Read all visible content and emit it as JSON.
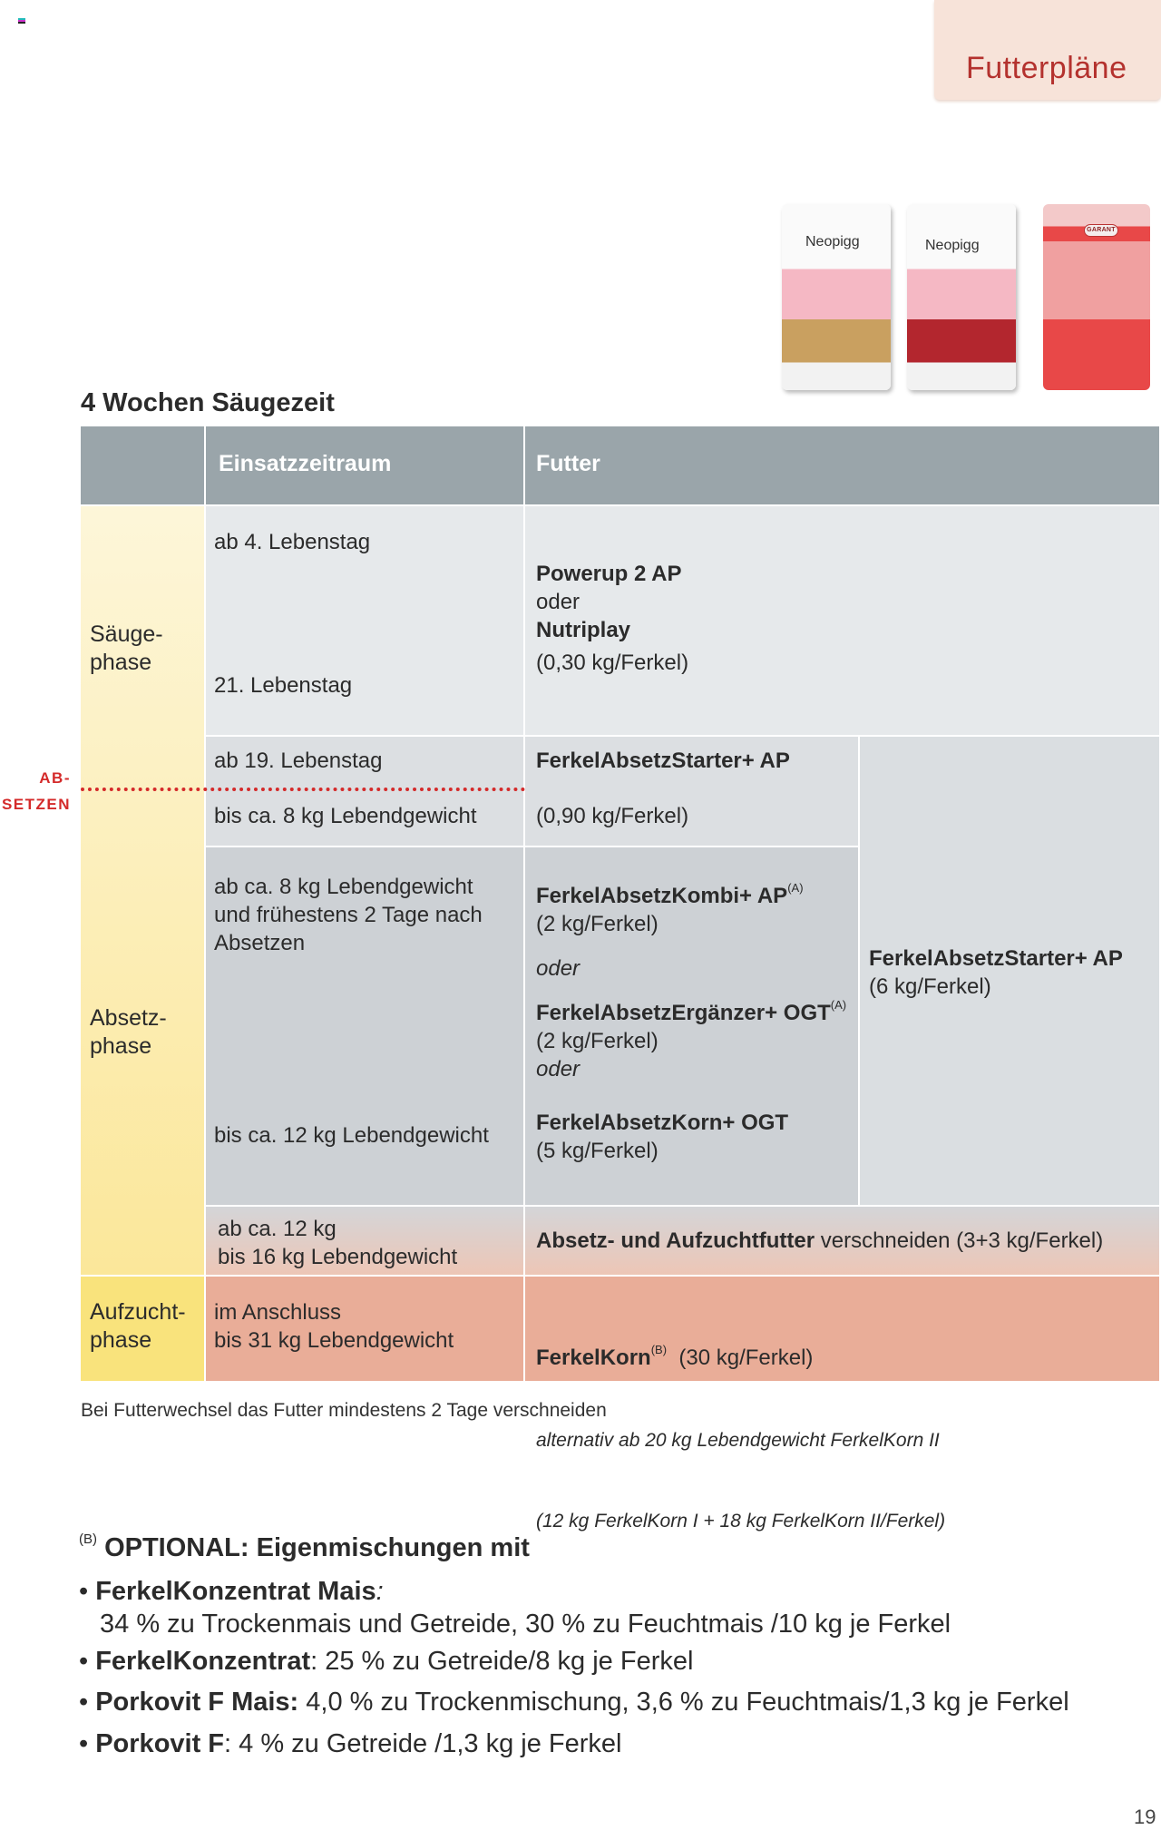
{
  "tab": {
    "label": "Futterpläne"
  },
  "products": [
    "Neopigg",
    "Neopigg",
    "GARANT"
  ],
  "heading": "4 Wochen Säugezeit",
  "table": {
    "headers": [
      "",
      "Einsatzzeitraum",
      "Futter"
    ],
    "phases": {
      "saeuge": "Säuge-\nphase",
      "absetz": "Absetz-\nphase",
      "aufzucht": "Aufzucht-\nphase"
    },
    "absetzen_marker": "AB-\nSETZEN",
    "rows": {
      "saeuge": {
        "from": "ab 4. Lebenstag",
        "to": "21. Lebenstag",
        "feed1": "Powerup 2 AP",
        "or": "oder",
        "feed2": "Nutriplay",
        "amount": "(0,30 kg/Ferkel)"
      },
      "start": {
        "from": "ab 19. Lebenstag",
        "to": "bis ca. 8 kg Lebendgewicht",
        "feed": "FerkelAbsetzStarter+ AP",
        "amount": "(0,90 kg/Ferkel)"
      },
      "kombi": {
        "from": "ab ca. 8 kg Lebendgewicht\nund frühestens 2 Tage nach\nAbsetzen",
        "to": "bis ca. 12 kg Lebendgewicht",
        "feed1": "FerkelAbsetzKombi+ AP",
        "sup1": "(A)",
        "amount1": "(2 kg/Ferkel)",
        "or1": "oder",
        "feed2": "FerkelAbsetzErgänzer+ OGT",
        "sup2": "(A)",
        "amount2": "(2 kg/Ferkel)",
        "or2": "oder",
        "feed3": "FerkelAbsetzKorn+ OGT",
        "amount3": "(5 kg/Ferkel)"
      },
      "alt": {
        "feed": "FerkelAbsetzStarter+ AP",
        "amount": "(6 kg/Ferkel)"
      },
      "mix": {
        "range": "ab ca. 12 kg\nbis 16 kg Lebendgewicht",
        "feed": "Absetz- und Aufzuchtfutter",
        "text": " verschneiden (3+3 kg/Ferkel)"
      },
      "aufzucht": {
        "range": "im Anschluss\nbis 31 kg Lebendgewicht",
        "feed": "FerkelKorn",
        "sup": "(B)",
        "amount": "  (30 kg/Ferkel)",
        "alt1": "alternativ ab 20 kg Lebendgewicht FerkelKorn II",
        "alt2": "(12 kg FerkelKorn I + 18 kg FerkelKorn II/Ferkel)"
      }
    }
  },
  "note": "Bei Futterwechsel das Futter mindestens 2 Tage verschneiden",
  "optional": {
    "sup": "(B)",
    "title": "OPTIONAL: Eigenmischungen mit",
    "items": [
      {
        "name": "FerkelKonzentrat Mais",
        "text": ":",
        "text2": "34 % zu Trockenmais und Getreide, 30 % zu Feuchtmais /10 kg je Ferkel"
      },
      {
        "name": "FerkelKonzentrat",
        "text": ": 25 % zu Getreide/8 kg je Ferkel"
      },
      {
        "name": "Porkovit F Mais:",
        "text": " 4,0 % zu Trockenmischung, 3,6 % zu Feuchtmais/1,3 kg je Ferkel"
      },
      {
        "name": "Porkovit F",
        "text": ": 4 % zu Getreide /1,3 kg je Ferkel"
      }
    ]
  },
  "page_number": "19",
  "colors": {
    "accent": "#b4322e",
    "header": "#9aa5aa",
    "yellow": "#fbe79a",
    "pink": "#e9ad98"
  }
}
